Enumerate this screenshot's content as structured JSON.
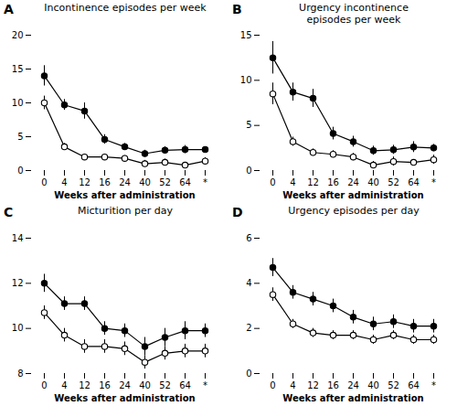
{
  "chart_data": [
    {
      "type": "line",
      "title": "Incontinence episodes per week",
      "annotations": [
        {
          "text": "A"
        }
      ],
      "xlabel": "Weeks after administration",
      "categories": [
        "0",
        "4",
        "12",
        "16",
        "24",
        "40",
        "52",
        "64",
        "*"
      ],
      "series": [
        {
          "values": [
            14.0,
            9.7,
            8.8,
            4.6,
            3.5,
            2.5,
            3.0,
            3.1,
            3.1
          ],
          "errors": [
            1.5,
            0.8,
            1.2,
            0.7,
            0.5,
            0.5,
            0.5,
            0.6,
            0.4
          ],
          "color": "#000000",
          "marker": "circle",
          "line_style": "solid"
        },
        {
          "values": [
            10.0,
            3.5,
            2.0,
            2.0,
            1.8,
            1.0,
            1.2,
            0.8,
            1.4
          ],
          "errors": [
            1.0,
            0.5,
            0.4,
            0.4,
            0.4,
            0.5,
            0.5,
            0.4,
            0.5
          ],
          "color": "#000000",
          "marker": "open_circle",
          "line_style": "solid"
        }
      ],
      "ylim": [
        0,
        20
      ],
      "yticks": [
        0,
        5,
        10,
        15,
        20
      ],
      "grid": false
    },
    {
      "type": "line",
      "title": "Urgency incontinence\nepisodes per week",
      "annotations": [
        {
          "text": "B"
        }
      ],
      "xlabel": "Weeks after administration",
      "categories": [
        "0",
        "4",
        "12",
        "16",
        "24",
        "40",
        "52",
        "64",
        "*"
      ],
      "series": [
        {
          "values": [
            12.5,
            8.7,
            8.0,
            4.1,
            3.2,
            2.2,
            2.3,
            2.6,
            2.5
          ],
          "errors": [
            1.8,
            1.0,
            1.0,
            0.7,
            0.6,
            0.5,
            0.5,
            0.6,
            0.4
          ],
          "color": "#000000",
          "marker": "circle",
          "line_style": "solid"
        },
        {
          "values": [
            8.5,
            3.2,
            2.0,
            1.8,
            1.5,
            0.6,
            1.0,
            0.9,
            1.2
          ],
          "errors": [
            1.2,
            0.5,
            0.4,
            0.4,
            0.4,
            0.4,
            0.5,
            0.3,
            0.5
          ],
          "color": "#000000",
          "marker": "open_circle",
          "line_style": "solid"
        }
      ],
      "ylim": [
        0,
        15
      ],
      "yticks": [
        0,
        5,
        10,
        15
      ],
      "grid": false
    },
    {
      "type": "line",
      "title": "Micturition per day",
      "annotations": [
        {
          "text": "C"
        }
      ],
      "xlabel": "Weeks after administration",
      "categories": [
        "0",
        "4",
        "12",
        "16",
        "24",
        "40",
        "52",
        "64",
        "*"
      ],
      "series": [
        {
          "values": [
            12.0,
            11.1,
            11.1,
            10.0,
            9.9,
            9.2,
            9.6,
            9.9,
            9.9
          ],
          "errors": [
            0.4,
            0.3,
            0.3,
            0.3,
            0.3,
            0.4,
            0.4,
            0.4,
            0.3
          ],
          "color": "#000000",
          "marker": "circle",
          "line_style": "solid"
        },
        {
          "values": [
            10.7,
            9.7,
            9.2,
            9.2,
            9.1,
            8.5,
            8.9,
            9.0,
            9.0
          ],
          "errors": [
            0.3,
            0.3,
            0.3,
            0.3,
            0.3,
            0.3,
            0.3,
            0.3,
            0.3
          ],
          "color": "#000000",
          "marker": "open_circle",
          "line_style": "solid"
        }
      ],
      "ylim": [
        8,
        14
      ],
      "yticks": [
        8,
        10,
        12,
        14
      ],
      "grid": false
    },
    {
      "type": "line",
      "title": "Urgency episodes per day",
      "annotations": [
        {
          "text": "D"
        }
      ],
      "xlabel": "Weeks after administration",
      "categories": [
        "0",
        "4",
        "12",
        "16",
        "24",
        "40",
        "52",
        "64",
        "*"
      ],
      "series": [
        {
          "values": [
            4.7,
            3.6,
            3.3,
            3.0,
            2.5,
            2.2,
            2.3,
            2.1,
            2.1
          ],
          "errors": [
            0.4,
            0.3,
            0.3,
            0.3,
            0.3,
            0.3,
            0.3,
            0.3,
            0.3
          ],
          "color": "#000000",
          "marker": "circle",
          "line_style": "solid"
        },
        {
          "values": [
            3.5,
            2.2,
            1.8,
            1.7,
            1.7,
            1.5,
            1.7,
            1.5,
            1.5
          ],
          "errors": [
            0.3,
            0.2,
            0.2,
            0.2,
            0.2,
            0.2,
            0.2,
            0.2,
            0.2
          ],
          "color": "#000000",
          "marker": "open_circle",
          "line_style": "solid"
        }
      ],
      "ylim": [
        0,
        6
      ],
      "yticks": [
        0,
        2,
        4,
        6
      ],
      "grid": false
    }
  ]
}
